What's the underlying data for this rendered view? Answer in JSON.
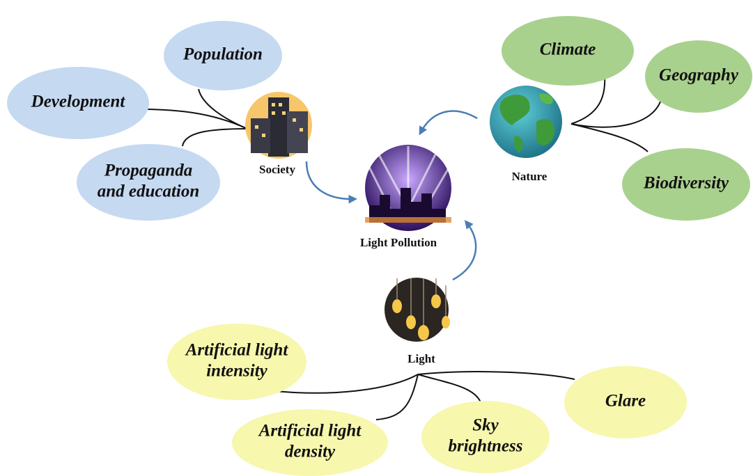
{
  "center": {
    "label": "Light Pollution"
  },
  "groups": [
    {
      "label": "Society",
      "factors": [
        [
          "Population"
        ],
        [
          "Development"
        ],
        [
          "Propaganda",
          "and education"
        ]
      ]
    },
    {
      "label": "Nature",
      "factors": [
        [
          "Climate"
        ],
        [
          "Geography"
        ],
        [
          "Biodiversity"
        ]
      ]
    },
    {
      "label": "Light",
      "factors": [
        [
          "Artificial light",
          "intensity"
        ],
        [
          "Glare"
        ],
        [
          "Artificial light",
          "density"
        ],
        [
          "Sky",
          "brightness"
        ]
      ]
    }
  ]
}
